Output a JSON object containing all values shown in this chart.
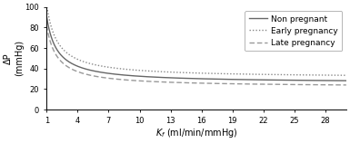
{
  "title": "",
  "ylabel": "ΔP\n(mmHg)",
  "xlabel": "$\\mathit{K}_{f}$ (ml/min/mmHg)",
  "xlim": [
    1,
    30
  ],
  "ylim": [
    0,
    100
  ],
  "xticks": [
    1,
    4,
    7,
    10,
    13,
    16,
    19,
    22,
    25,
    28
  ],
  "yticks": [
    0,
    20,
    40,
    60,
    80,
    100
  ],
  "non_pregnant": {
    "color": "#666666",
    "linestyle": "solid",
    "label": "Non pregnant",
    "a": 65,
    "b": 26
  },
  "early_pregnancy": {
    "color": "#888888",
    "linestyle": "dotted",
    "label": "Early pregnancy",
    "a": 72,
    "b": 31
  },
  "late_pregnancy": {
    "color": "#999999",
    "linestyle": "dashed",
    "label": "Late pregnancy",
    "a": 60,
    "b": 22
  },
  "legend_fontsize": 6.5,
  "axis_fontsize": 7,
  "tick_fontsize": 6,
  "figsize": [
    3.85,
    1.58
  ],
  "dpi": 100
}
